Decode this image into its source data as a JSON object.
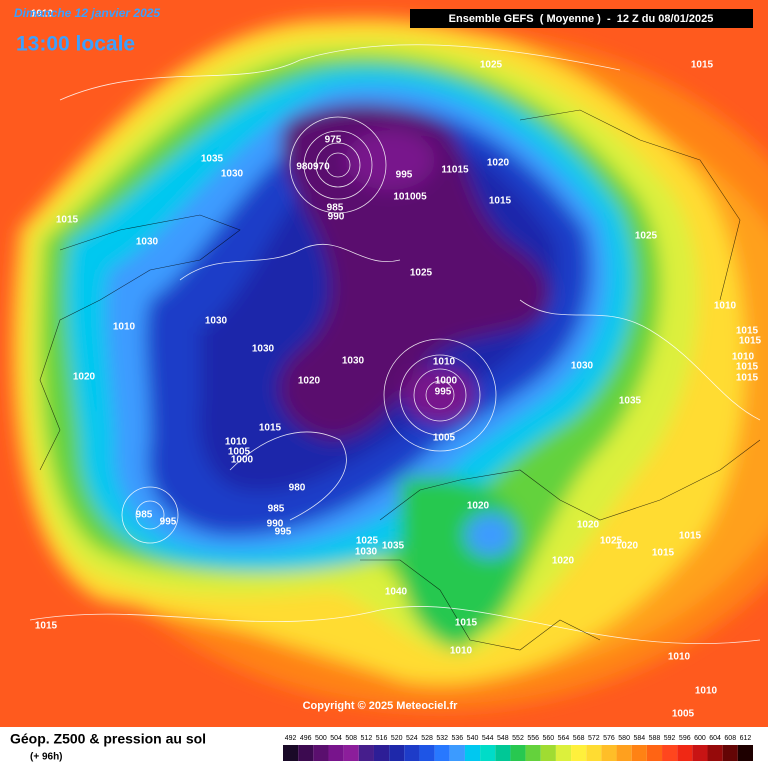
{
  "header": {
    "date": "Dimanche 12 janvier 2025",
    "time": "13:00 locale",
    "model": "Ensemble GEFS  ( Moyenne )  -  12 Z du 08/01/2025",
    "copyright": "Copyright © 2025 Meteociel.fr"
  },
  "legend": {
    "title": "Géop. Z500 & pression au sol",
    "lead": "(+ 96h)",
    "scale": [
      492,
      496,
      500,
      504,
      508,
      512,
      516,
      520,
      524,
      528,
      532,
      536,
      540,
      544,
      548,
      552,
      556,
      560,
      564,
      568,
      572,
      576,
      580,
      584,
      588,
      592,
      596,
      600,
      604,
      608,
      612
    ],
    "colors": [
      "#1a0a28",
      "#3c0a50",
      "#5a0f6e",
      "#78148c",
      "#8c1e9b",
      "#461e8c",
      "#2d1e96",
      "#1e28aa",
      "#1e3cc8",
      "#1e55e6",
      "#2878ff",
      "#3c9bff",
      "#00c8f0",
      "#00dcc8",
      "#00c896",
      "#28c850",
      "#64d23c",
      "#a0dc32",
      "#dcf03c",
      "#fff03c",
      "#ffdc32",
      "#ffbe28",
      "#ffa01e",
      "#ff8214",
      "#ff6414",
      "#ff461e",
      "#f02814",
      "#c81414",
      "#960a0a",
      "#640505",
      "#1e0000"
    ]
  },
  "isobar_labels": [
    "1010",
    "1025",
    "1015",
    "975",
    "980970",
    "995",
    "11015",
    "1020",
    "1035",
    "1030",
    "985",
    "990",
    "101005",
    "1015",
    "1015",
    "1030",
    "1025",
    "1025",
    "1030",
    "1010",
    "1010",
    "1015",
    "1015",
    "1010",
    "1015",
    "1015",
    "1030",
    "1030",
    "1010",
    "1030",
    "1020",
    "1020",
    "1000",
    "995",
    "1035",
    "1015",
    "1005",
    "1010",
    "1005",
    "1000",
    "980",
    "985",
    "1020",
    "985",
    "995",
    "990",
    "995",
    "1020",
    "1015",
    "1025",
    "1035",
    "1025",
    "1020",
    "1030",
    "1020",
    "1015",
    "1040",
    "1015",
    "1015",
    "1010",
    "1010",
    "1010",
    "1005"
  ]
}
